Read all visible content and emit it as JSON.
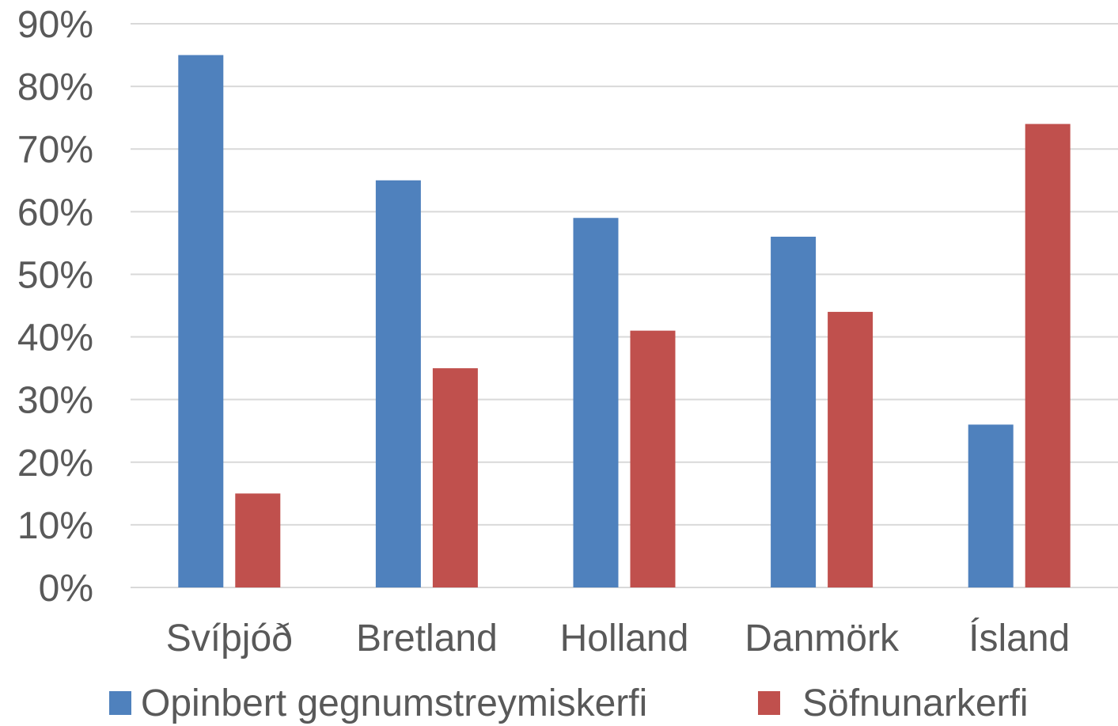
{
  "chart_data": {
    "type": "bar",
    "categories": [
      "Svíþjóð",
      "Bretland",
      "Holland",
      "Danmörk",
      "Ísland"
    ],
    "series": [
      {
        "name": "Opinbert gegnumstreymiskerfi",
        "values": [
          85,
          65,
          59,
          56,
          26
        ],
        "color": "#4f81bd"
      },
      {
        "name": "Söfnunarkerfi",
        "values": [
          15,
          35,
          41,
          44,
          74
        ],
        "color": "#c0504d"
      }
    ],
    "title": "",
    "xlabel": "",
    "ylabel": "",
    "ylim": [
      0,
      90
    ],
    "yticks": [
      0,
      10,
      20,
      30,
      40,
      50,
      60,
      70,
      80,
      90
    ],
    "ytick_labels": [
      "0%",
      "10%",
      "20%",
      "30%",
      "40%",
      "50%",
      "60%",
      "70%",
      "80%",
      "90%"
    ],
    "grid": true,
    "legend_position": "bottom"
  }
}
